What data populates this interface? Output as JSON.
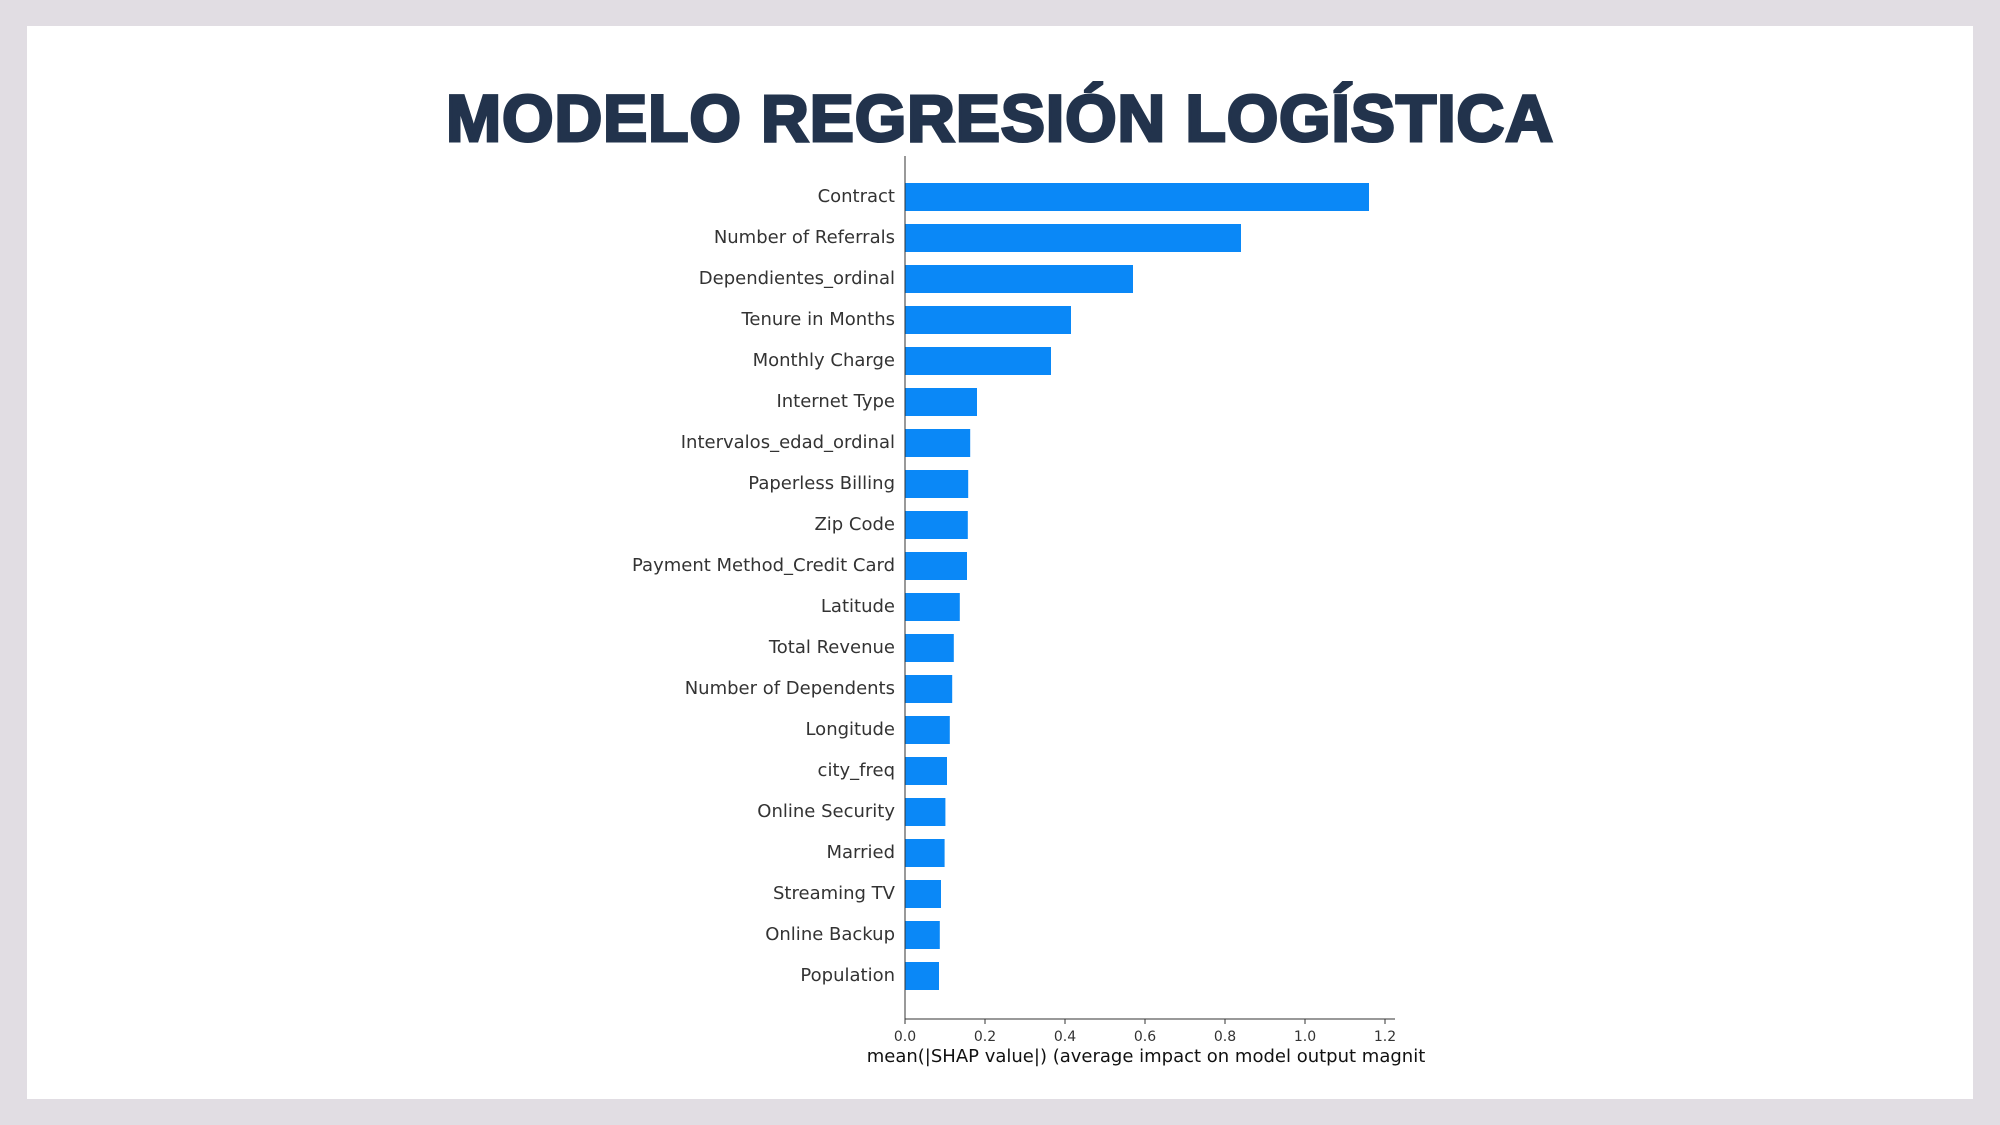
{
  "slide": {
    "title": "MODELO REGRESIÓN LOGÍSTICA"
  },
  "colors": {
    "page_background": "#e1dde3",
    "slide_background": "#ffffff",
    "title": "#22334c",
    "bar": "#0a88f7",
    "axis": "#333333",
    "tick_label": "#333333"
  },
  "chart_data": {
    "type": "bar",
    "orientation": "horizontal",
    "title": "",
    "xlabel": "mean(|SHAP value|) (average impact on model output magnit",
    "ylabel": "",
    "xlim": [
      0,
      1.22
    ],
    "x_ticks": [
      0.0,
      0.2,
      0.4,
      0.6,
      0.8,
      1.0,
      1.2
    ],
    "x_tick_labels": [
      "0.0",
      "0.2",
      "0.4",
      "0.6",
      "0.8",
      "1.0",
      "1.2"
    ],
    "grid": false,
    "categories": [
      "Contract",
      "Number of Referrals",
      "Dependientes_ordinal",
      "Tenure in Months",
      "Monthly Charge",
      "Internet Type",
      "Intervalos_edad_ordinal",
      "Paperless Billing",
      "Zip Code",
      "Payment Method_Credit Card",
      "Latitude",
      "Total Revenue",
      "Number of Dependents",
      "Longitude",
      "city_freq",
      "Online Security",
      "Married",
      "Streaming TV",
      "Online Backup",
      "Population"
    ],
    "values": [
      1.16,
      0.84,
      0.57,
      0.415,
      0.365,
      0.18,
      0.163,
      0.158,
      0.157,
      0.155,
      0.137,
      0.122,
      0.118,
      0.112,
      0.105,
      0.101,
      0.099,
      0.09,
      0.087,
      0.085
    ]
  }
}
